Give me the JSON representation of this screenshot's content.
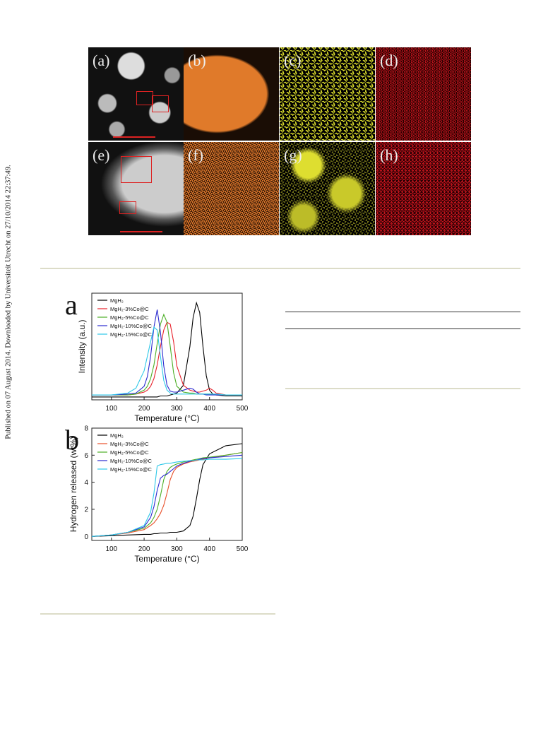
{
  "side_note": "Published on 07 August 2014. Downloaded by Universiteit Utrecht on 27/10/2014 22:37:49.",
  "figure_panels": [
    "(a)",
    "(b)",
    "(c)",
    "(d)",
    "(e)",
    "(f)",
    "(g)",
    "(h)"
  ],
  "chart_data": [
    {
      "type": "line",
      "panel_label": "a",
      "xlabel": "Temperature (°C)",
      "ylabel": "Intensity (a.u.)",
      "x": [
        40,
        100,
        150,
        175,
        200,
        210,
        220,
        230,
        240,
        250,
        260,
        270,
        280,
        290,
        300,
        320,
        340,
        350,
        360,
        370,
        380,
        390,
        400,
        410,
        420,
        450,
        500
      ],
      "xlim": [
        40,
        500
      ],
      "xticks": [
        100,
        200,
        300,
        400,
        500
      ],
      "ylim": [
        0,
        1.1
      ],
      "legend": "upper left",
      "series": [
        {
          "name": "MgH₂",
          "color": "#000000",
          "values": [
            0.03,
            0.03,
            0.03,
            0.03,
            0.03,
            0.03,
            0.03,
            0.03,
            0.03,
            0.04,
            0.04,
            0.04,
            0.05,
            0.06,
            0.07,
            0.15,
            0.55,
            0.85,
            1.0,
            0.9,
            0.55,
            0.25,
            0.1,
            0.06,
            0.05,
            0.04,
            0.04
          ]
        },
        {
          "name": "MgH₂-3%Co@C",
          "color": "#e8202a",
          "values": [
            0.05,
            0.05,
            0.05,
            0.06,
            0.08,
            0.1,
            0.14,
            0.22,
            0.36,
            0.55,
            0.72,
            0.8,
            0.78,
            0.6,
            0.35,
            0.15,
            0.1,
            0.09,
            0.08,
            0.08,
            0.09,
            0.1,
            0.12,
            0.1,
            0.07,
            0.05,
            0.05
          ]
        },
        {
          "name": "MgH₂-5%Co@C",
          "color": "#4caf26",
          "values": [
            0.05,
            0.05,
            0.05,
            0.06,
            0.1,
            0.14,
            0.22,
            0.36,
            0.58,
            0.78,
            0.88,
            0.8,
            0.55,
            0.28,
            0.14,
            0.08,
            0.07,
            0.07,
            0.06,
            0.06,
            0.06,
            0.06,
            0.06,
            0.06,
            0.05,
            0.05,
            0.05
          ]
        },
        {
          "name": "MgH₂-10%Co@C",
          "color": "#2a2ad0",
          "values": [
            0.05,
            0.05,
            0.06,
            0.07,
            0.14,
            0.24,
            0.45,
            0.75,
            0.93,
            0.7,
            0.35,
            0.15,
            0.09,
            0.08,
            0.08,
            0.1,
            0.12,
            0.11,
            0.08,
            0.06,
            0.06,
            0.05,
            0.05,
            0.05,
            0.05,
            0.05,
            0.05
          ]
        },
        {
          "name": "MgH₂-15%Co@C",
          "color": "#2ec8e8",
          "values": [
            0.05,
            0.05,
            0.07,
            0.12,
            0.3,
            0.45,
            0.6,
            0.75,
            0.72,
            0.45,
            0.2,
            0.1,
            0.07,
            0.06,
            0.06,
            0.06,
            0.06,
            0.06,
            0.06,
            0.06,
            0.06,
            0.06,
            0.06,
            0.06,
            0.06,
            0.05,
            0.05
          ]
        }
      ]
    },
    {
      "type": "line",
      "panel_label": "b",
      "xlabel": "Temperature (°C)",
      "ylabel": "Hydrogen released (wt%)",
      "x": [
        40,
        100,
        150,
        200,
        220,
        230,
        240,
        250,
        260,
        270,
        280,
        290,
        300,
        320,
        340,
        350,
        360,
        370,
        380,
        400,
        450,
        500
      ],
      "xlim": [
        40,
        500
      ],
      "xticks": [
        100,
        200,
        300,
        400,
        500
      ],
      "ylim": [
        -0.3,
        8
      ],
      "yticks": [
        0,
        2,
        4,
        6,
        8
      ],
      "legend": "upper left",
      "series": [
        {
          "name": "MgH₂",
          "color": "#000000",
          "values": [
            0,
            0.05,
            0.1,
            0.15,
            0.15,
            0.2,
            0.2,
            0.25,
            0.25,
            0.25,
            0.3,
            0.3,
            0.3,
            0.4,
            0.8,
            1.5,
            2.8,
            4.2,
            5.3,
            6.1,
            6.7,
            6.85
          ]
        },
        {
          "name": "MgH₂-3%Co@C",
          "color": "#e8502a",
          "values": [
            0,
            0.1,
            0.25,
            0.5,
            0.8,
            1.0,
            1.3,
            1.7,
            2.3,
            3.2,
            4.2,
            4.8,
            5.1,
            5.35,
            5.5,
            5.55,
            5.6,
            5.65,
            5.7,
            5.8,
            6.0,
            6.2
          ]
        },
        {
          "name": "MgH₂-5%Co@C",
          "color": "#4caf26",
          "values": [
            0,
            0.1,
            0.3,
            0.6,
            1.0,
            1.4,
            2.0,
            3.0,
            4.2,
            4.8,
            5.1,
            5.25,
            5.35,
            5.5,
            5.6,
            5.65,
            5.7,
            5.75,
            5.8,
            5.85,
            6.0,
            6.2
          ]
        },
        {
          "name": "MgH₂-10%Co@C",
          "color": "#2a2ad0",
          "values": [
            0,
            0.1,
            0.3,
            0.7,
            1.4,
            2.2,
            3.4,
            4.3,
            4.5,
            4.6,
            4.8,
            5.0,
            5.2,
            5.4,
            5.55,
            5.6,
            5.65,
            5.7,
            5.75,
            5.8,
            5.9,
            6.0
          ]
        },
        {
          "name": "MgH₂-15%Co@C",
          "color": "#2ec8e8",
          "values": [
            0,
            0.1,
            0.3,
            0.8,
            1.8,
            3.2,
            5.2,
            5.3,
            5.35,
            5.4,
            5.4,
            5.45,
            5.5,
            5.55,
            5.6,
            5.6,
            5.65,
            5.65,
            5.65,
            5.7,
            5.7,
            5.75
          ]
        }
      ]
    }
  ]
}
